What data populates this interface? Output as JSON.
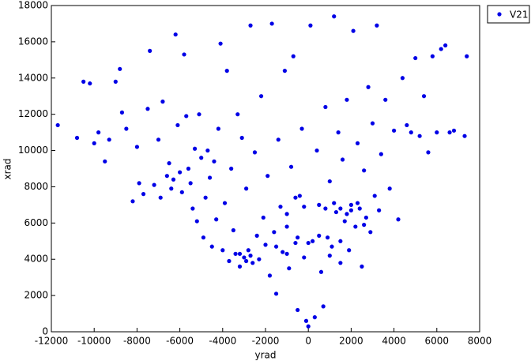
{
  "chart_data": {
    "type": "scatter",
    "x_label": "yrad",
    "y_label": "xrad",
    "xlim": [
      -12000,
      8000
    ],
    "xticks": [
      -12000,
      -10000,
      -8000,
      -6000,
      -4000,
      -2000,
      0,
      2000,
      4000,
      6000,
      8000
    ],
    "ylim": [
      0,
      18000
    ],
    "yticks": [
      0,
      2000,
      4000,
      6000,
      8000,
      10000,
      12000,
      14000,
      16000,
      18000
    ],
    "legend": "outside-top-right",
    "x": [
      -11700,
      -10800,
      -10500,
      -10200,
      -10000,
      -9800,
      -9500,
      -9300,
      -9000,
      -8800,
      -8700,
      -8500,
      -8200,
      -8000,
      -7900,
      -7700,
      -7500,
      -7400,
      -7200,
      -7000,
      -6900,
      -6800,
      -6600,
      -6500,
      -6400,
      -6300,
      -6200,
      -6100,
      -6000,
      -5900,
      -5800,
      -5700,
      -5600,
      -5500,
      -5400,
      -5300,
      -5200,
      -5100,
      -5000,
      -4900,
      -4800,
      -4700,
      -4600,
      -4500,
      -4400,
      -4300,
      -4200,
      -4100,
      -4000,
      -3900,
      -3800,
      -3700,
      -3600,
      -3500,
      -3400,
      -3300,
      -3200,
      -3100,
      -3000,
      -2900,
      -2800,
      -2700,
      -2600,
      -2500,
      -2400,
      -2300,
      -2200,
      -2100,
      -2000,
      -1900,
      -1800,
      -1700,
      -1600,
      -1500,
      -1400,
      -1300,
      -1200,
      -1100,
      -1000,
      -900,
      -800,
      -700,
      -600,
      -500,
      -400,
      -300,
      -200,
      -100,
      0,
      100,
      200,
      300,
      400,
      500,
      600,
      700,
      800,
      900,
      1000,
      1100,
      1200,
      1300,
      1400,
      1500,
      1600,
      1700,
      1800,
      1900,
      2000,
      2100,
      2200,
      2300,
      2400,
      2500,
      2600,
      2700,
      2800,
      2900,
      3000,
      3100,
      3200,
      3300,
      3400,
      3600,
      3800,
      4000,
      4200,
      4400,
      4600,
      4800,
      5000,
      5200,
      5400,
      5600,
      5800,
      6000,
      6200,
      6400,
      6600,
      6800,
      7400,
      7300,
      -3200,
      -2900,
      -2700,
      -1500,
      -1000,
      -500,
      0,
      500,
      1000,
      1500,
      1800,
      2000,
      2300,
      2600,
      1200,
      800,
      -200,
      -600,
      -1000,
      1500
    ],
    "series": [
      {
        "name": "V21",
        "color": "#0000e6",
        "values": [
          11400,
          10700,
          13800,
          13700,
          10400,
          11000,
          9400,
          10600,
          13800,
          14500,
          12100,
          11200,
          7200,
          10200,
          8200,
          7600,
          12300,
          15500,
          8100,
          10600,
          7400,
          12700,
          8600,
          9300,
          7900,
          8400,
          16400,
          11400,
          8800,
          7700,
          15300,
          11900,
          9000,
          8200,
          6800,
          10100,
          6100,
          12000,
          9600,
          5200,
          7400,
          10000,
          8500,
          4700,
          9400,
          6200,
          11200,
          15900,
          4500,
          7100,
          14400,
          3900,
          9000,
          5600,
          4300,
          12000,
          3600,
          10700,
          4100,
          7900,
          4500,
          16900,
          3800,
          9900,
          5300,
          4000,
          13000,
          6300,
          4800,
          8600,
          3100,
          17000,
          5500,
          2100,
          10600,
          6900,
          4400,
          14400,
          5800,
          3500,
          9100,
          15200,
          4900,
          1200,
          7500,
          11200,
          4100,
          600,
          300,
          16900,
          5000,
          800,
          10000,
          7000,
          3300,
          1400,
          12400,
          5200,
          8300,
          4700,
          17400,
          6600,
          11000,
          3800,
          9500,
          6100,
          12800,
          4500,
          7000,
          16600,
          5800,
          10400,
          6800,
          3600,
          8900,
          6300,
          13500,
          5500,
          11500,
          7500,
          16900,
          6700,
          9800,
          12800,
          7900,
          11100,
          6200,
          14000,
          11400,
          11000,
          15100,
          10800,
          13000,
          9900,
          15200,
          11000,
          15600,
          15800,
          11000,
          11100,
          15200,
          10800,
          4300,
          3900,
          4200,
          4700,
          4300,
          5200,
          4900,
          5300,
          4200,
          5000,
          6500,
          6700,
          7100,
          5900,
          7100,
          6800,
          6900,
          7400,
          6500,
          6800
        ]
      }
    ]
  }
}
